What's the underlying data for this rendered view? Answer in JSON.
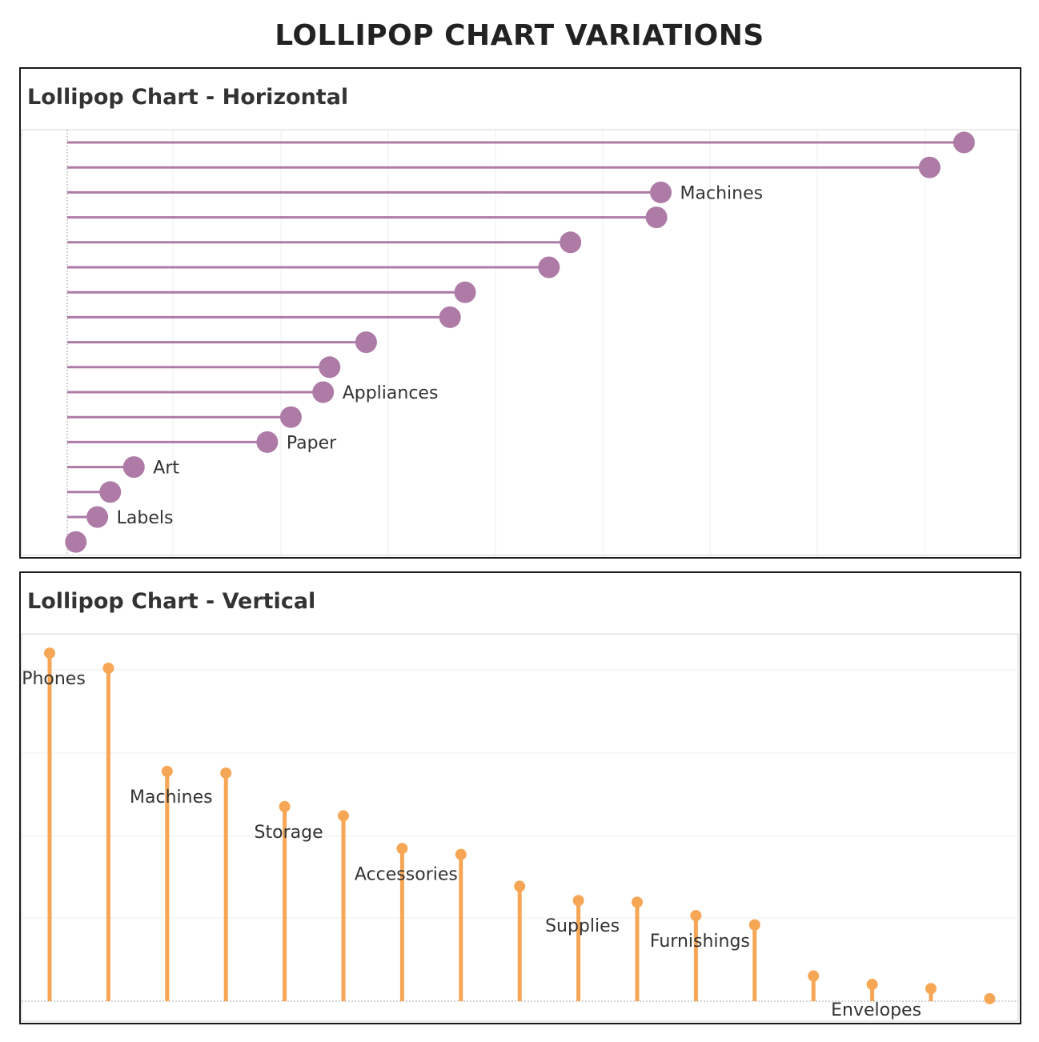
{
  "title": "LOLLIPOP CHART VARIATIONS",
  "chart_data": [
    {
      "type": "lollipop-horizontal",
      "title": "Lollipop Chart - Horizontal",
      "orientation": "horizontal",
      "color": "#AD7BA6",
      "grid": true,
      "xlim": [
        0,
        450
      ],
      "values": [
        417,
        401,
        276,
        274,
        234,
        224,
        185,
        178,
        139,
        122,
        119,
        104,
        93,
        31,
        20,
        14,
        4
      ],
      "labels": [
        "",
        "",
        "Machines",
        "",
        "",
        "",
        "",
        "",
        "",
        "",
        "Appliances",
        "",
        "Paper",
        "Art",
        "",
        "Labels",
        ""
      ]
    },
    {
      "type": "lollipop-vertical",
      "title": "Lollipop Chart - Vertical",
      "orientation": "vertical",
      "color": "#F6A655",
      "grid": true,
      "ylim": [
        0,
        438
      ],
      "values": [
        415,
        397,
        274,
        272,
        232,
        221,
        182,
        175,
        137,
        120,
        118,
        102,
        91,
        30,
        20,
        15,
        3
      ],
      "labels": [
        "Phones",
        "",
        "Machines",
        "",
        "Storage",
        "",
        "Accessories",
        "",
        "",
        "Supplies",
        "",
        "Furnishings",
        "",
        "",
        "Envelopes",
        "",
        ""
      ]
    }
  ]
}
